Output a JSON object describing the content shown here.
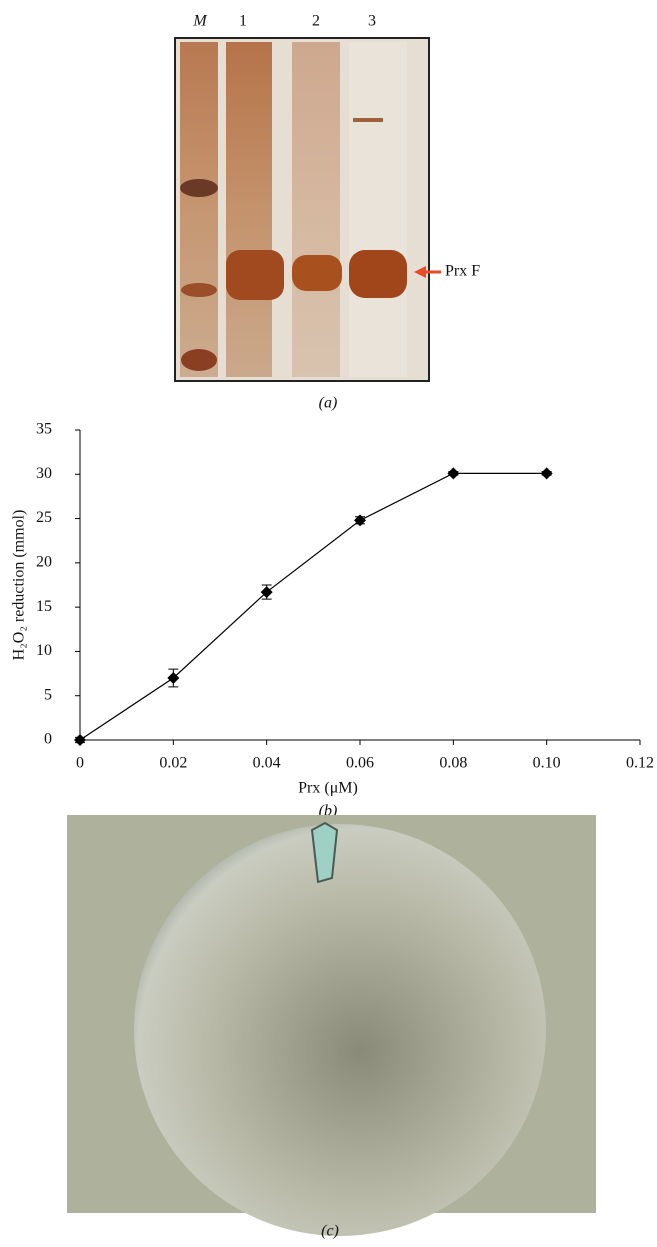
{
  "panel_a": {
    "lane_labels": [
      "M",
      "1",
      "2",
      "3"
    ],
    "band_label": "Prx F",
    "caption": "(a)"
  },
  "chart_data": {
    "type": "line",
    "x_label": "Prx (μM)",
    "y_label": "H₂O₂ reduction (mmol)",
    "x": [
      0,
      0.02,
      0.04,
      0.06,
      0.08,
      0.1
    ],
    "series": [
      {
        "color": "#000000",
        "values": [
          0,
          7,
          16.7,
          24.8,
          30.1,
          30.1
        ],
        "errors": [
          0.3,
          1.0,
          0.8,
          0.4,
          0.2,
          0.2
        ]
      }
    ],
    "xlim": [
      0,
      0.12
    ],
    "xticks": [
      0,
      0.02,
      0.04,
      0.06,
      0.08,
      {
        "value": 0.1,
        "label": "0.10"
      },
      0.12
    ],
    "ylim": [
      0,
      35
    ],
    "yticks": [
      0,
      5,
      10,
      15,
      20,
      25,
      30,
      35
    ],
    "caption": "(b)"
  },
  "panel_c": {
    "caption": "(c)"
  }
}
